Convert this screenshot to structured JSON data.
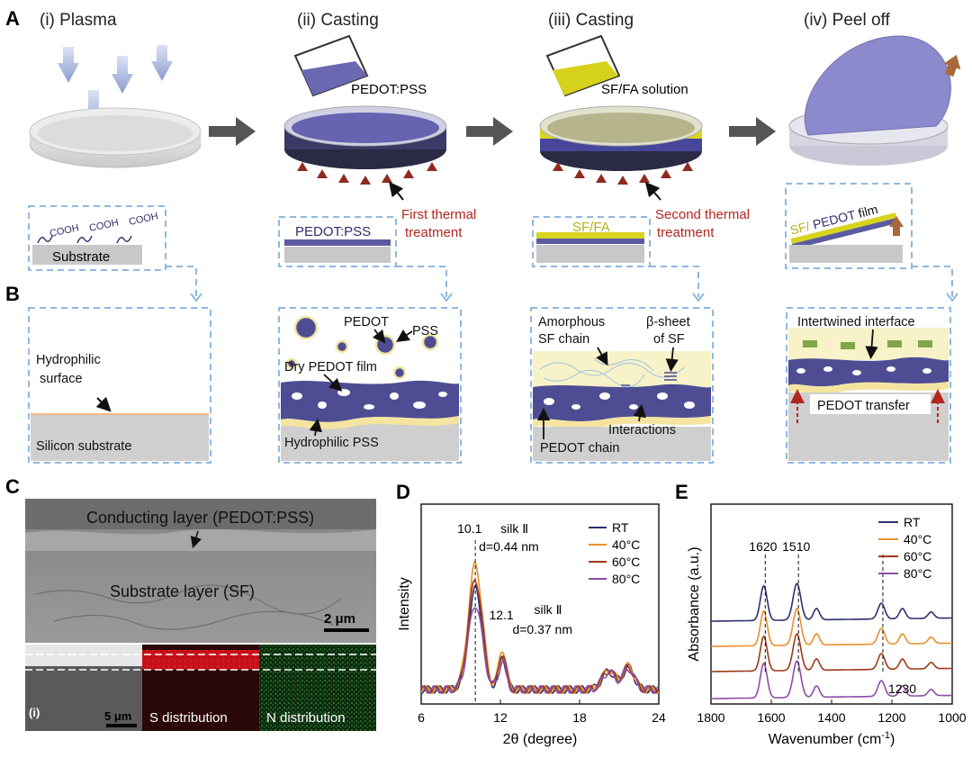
{
  "panel_letters": {
    "a": "A",
    "b": "B",
    "c": "C",
    "d": "D",
    "e": "E"
  },
  "steps": [
    "(i) Plasma",
    "(ii) Casting",
    "(iii) Casting",
    "(iv) Peel off"
  ],
  "panel_a": {
    "pedot_pss_label": "PEDOT:PSS",
    "sffa_solution_label": "SF/FA solution",
    "first_thermal_1": "First thermal",
    "first_thermal_2": "treatment",
    "second_thermal_1": "Second thermal",
    "second_thermal_2": "treatment",
    "cooh": "COOH",
    "substrate": "Substrate",
    "layer_pedot": "PEDOT:PSS",
    "layer_sffa": "SF/FA",
    "film_sf": "SF/",
    "film_pedot": "PEDOT",
    "film_word": "film"
  },
  "panel_b": {
    "hydrophilic_1": "Hydrophilic",
    "hydrophilic_2": "surface",
    "silicon": "Silicon substrate",
    "pedot": "PEDOT",
    "pss": "PSS",
    "dry_film": "Dry PEDOT film",
    "hydrophilic_pss": "Hydrophilic PSS",
    "amorphous_1": "Amorphous",
    "amorphous_2": "SF chain",
    "beta_1": "β-sheet",
    "beta_2": "of SF",
    "interactions": "Interactions",
    "pedot_chain": "PEDOT chain",
    "intertwined": "Intertwined interface",
    "pedot_transfer": "PEDOT transfer"
  },
  "panel_c": {
    "conducting": "Conducting layer (PEDOT:PSS)",
    "substrate_layer": "Substrate layer (SF)",
    "scale_top": "2 μm",
    "inset_i": "(i)",
    "scale_bottom": "5 μm",
    "s_dist": "S distribution",
    "n_dist": "N distribution"
  },
  "colors": {
    "rt": "#2e2f6e",
    "c40": "#e8902c",
    "c60": "#9b3a18",
    "c80": "#8b4ea6",
    "pedot": "#5b5aa0",
    "sf": "#d7d41e",
    "red": "#b3261e"
  },
  "chart_data": [
    {
      "type": "line",
      "panel": "D",
      "xlabel": "2θ (degree)",
      "ylabel": "Intensity",
      "xlim": [
        6,
        24
      ],
      "xticks": [
        "6",
        "12",
        "18",
        "24"
      ],
      "series": [
        {
          "name": "RT",
          "color": "#2e2f6e"
        },
        {
          "name": "40°C",
          "color": "#e8902c"
        },
        {
          "name": "60°C",
          "color": "#9b3a18"
        },
        {
          "name": "80°C",
          "color": "#8b4ea6"
        }
      ],
      "peaks": [
        {
          "x": 10.1,
          "label": "10.1",
          "note1": "silk Ⅱ",
          "note2": "d=0.44 nm"
        },
        {
          "x": 12.1,
          "label": "12.1",
          "note1": "silk Ⅱ",
          "note2": "d=0.37 nm"
        }
      ]
    },
    {
      "type": "line",
      "panel": "E",
      "xlabel": "Wavenumber (cm",
      "xlabel_sup": "-1",
      "xlabel_end": ")",
      "ylabel": "Absorbance (a.u.)",
      "xlim": [
        1800,
        1000
      ],
      "xticks": [
        "1800",
        "1600",
        "1400",
        "1200",
        "1000"
      ],
      "series": [
        {
          "name": "RT",
          "color": "#2e2f6e"
        },
        {
          "name": "40°C",
          "color": "#e8902c"
        },
        {
          "name": "60°C",
          "color": "#9b3a18"
        },
        {
          "name": "80°C",
          "color": "#8b4ea6"
        }
      ],
      "peaks": [
        {
          "x": 1620,
          "label": "1620"
        },
        {
          "x": 1510,
          "label": "1510"
        },
        {
          "x": 1230,
          "label": "1230"
        }
      ]
    }
  ]
}
